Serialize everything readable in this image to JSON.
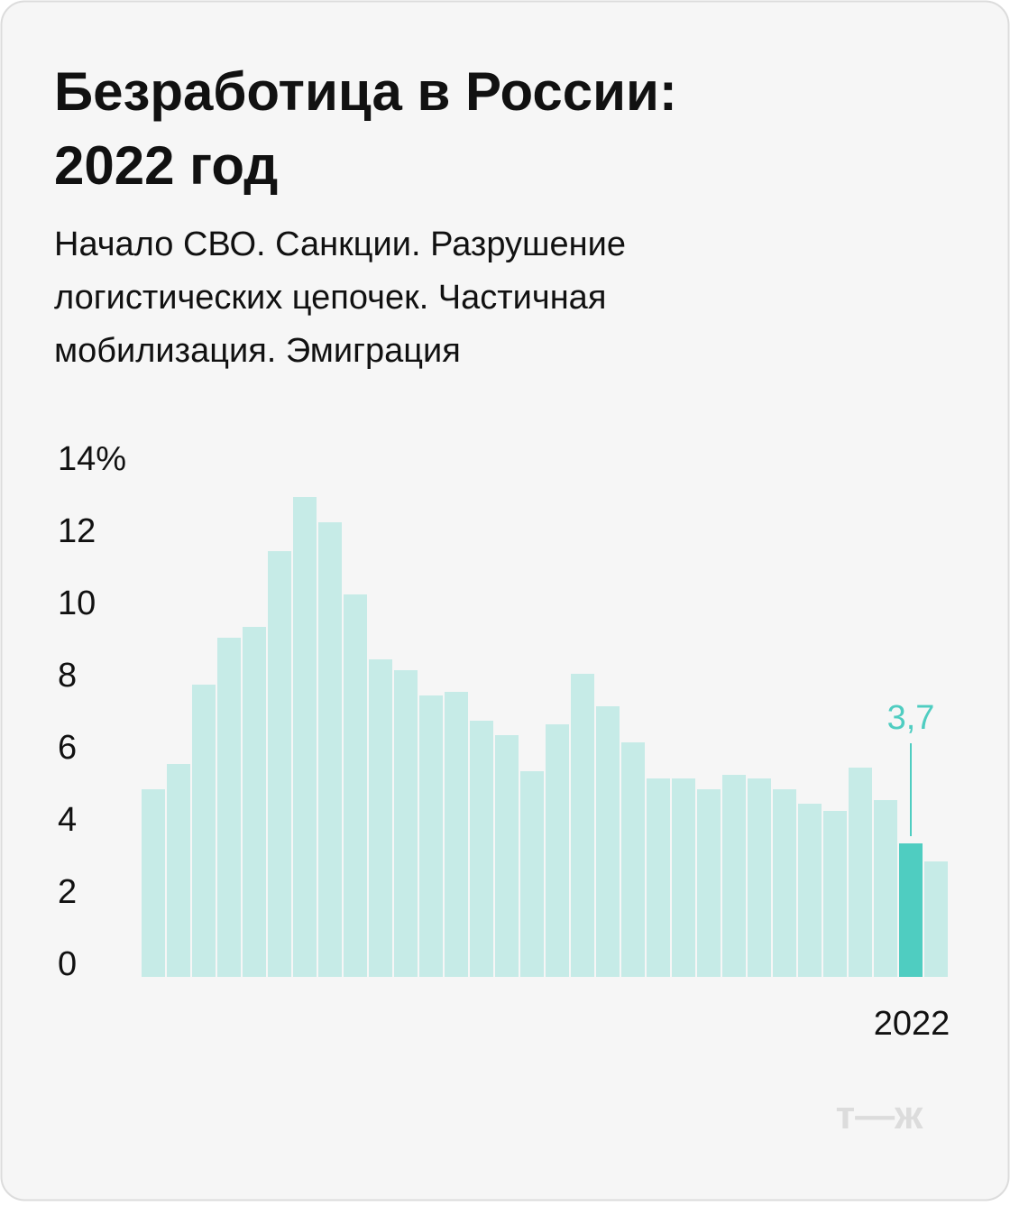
{
  "chart_data": {
    "type": "bar",
    "title": [
      "Безработица в России:",
      "2022 год"
    ],
    "subtitle": [
      "Начало СВО. Санкции. Разрушение",
      "логистических цепочек. Частичная",
      "мобилизация. Эмиграция"
    ],
    "categories": [
      null,
      null,
      null,
      null,
      null,
      null,
      null,
      null,
      null,
      null,
      null,
      null,
      null,
      null,
      null,
      null,
      null,
      null,
      null,
      null,
      null,
      null,
      null,
      null,
      null,
      null,
      null,
      null,
      null,
      null,
      "2022",
      null
    ],
    "values": [
      5.2,
      5.9,
      8.1,
      9.4,
      9.7,
      11.8,
      13.3,
      12.6,
      10.6,
      8.8,
      8.5,
      7.8,
      7.9,
      7.1,
      6.7,
      5.7,
      7.0,
      8.4,
      7.5,
      6.5,
      5.5,
      5.5,
      5.2,
      5.6,
      5.5,
      5.2,
      4.8,
      4.6,
      5.8,
      4.9,
      3.7,
      3.2
    ],
    "value_labels": [
      null,
      null,
      null,
      null,
      null,
      null,
      null,
      null,
      null,
      null,
      null,
      null,
      null,
      null,
      null,
      null,
      null,
      null,
      null,
      null,
      null,
      null,
      null,
      null,
      null,
      null,
      null,
      null,
      null,
      null,
      "3,7",
      null
    ],
    "color": "#c6ebe7",
    "highlight_color": "#4fcdc1",
    "highlight_index": 30,
    "ylim": [
      0,
      14
    ],
    "yticks": [
      0,
      2,
      4,
      6,
      8,
      10,
      12,
      {
        "value": 14,
        "label": "14%"
      }
    ],
    "grid": false,
    "logo": "т—ж"
  }
}
